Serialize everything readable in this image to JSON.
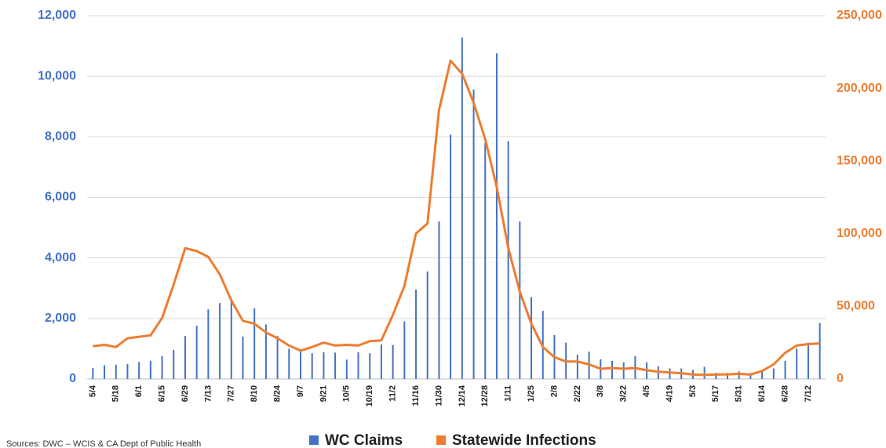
{
  "chart_data": {
    "type": "bar-line",
    "source": "Sources: DWC – WCIS & CA Dept of Public Health",
    "categories": [
      "5/4",
      null,
      "5/18",
      null,
      "6/1",
      null,
      "6/15",
      null,
      "6/29",
      null,
      "7/13",
      null,
      "7/27",
      null,
      "8/10",
      null,
      "8/24",
      null,
      "9/7",
      null,
      "9/21",
      null,
      "10/5",
      null,
      "10/19",
      null,
      "11/2",
      null,
      "11/16",
      null,
      "11/30",
      null,
      "12/14",
      null,
      "12/28",
      null,
      "1/11",
      null,
      "1/25",
      null,
      "2/8",
      null,
      "2/22",
      null,
      "3/8",
      null,
      "3/22",
      null,
      "4/5",
      null,
      "4/19",
      null,
      "5/3",
      null,
      "5/17",
      null,
      "5/31",
      null,
      "6/14",
      null,
      "6/28",
      null,
      "7/12",
      null
    ],
    "series": [
      {
        "name": "WC Claims",
        "type": "bar",
        "color": "#4472c4",
        "values": [
          360,
          450,
          470,
          490,
          560,
          600,
          750,
          960,
          1420,
          1760,
          2300,
          2510,
          2600,
          1400,
          2330,
          1800,
          1420,
          1000,
          950,
          850,
          880,
          870,
          640,
          880,
          850,
          1140,
          1120,
          1900,
          2950,
          3550,
          5200,
          8070,
          11280,
          9560,
          7800,
          10760,
          7850,
          5200,
          2700,
          2250,
          1450,
          1200,
          800,
          900,
          650,
          600,
          550,
          750,
          550,
          420,
          350,
          350,
          300,
          400,
          200,
          200,
          250,
          200,
          300,
          350,
          600,
          1000,
          1200,
          1850
        ]
      },
      {
        "name": "Statewide Infections",
        "type": "line",
        "axis": "y2",
        "color": "#ed7d31",
        "values": [
          22500,
          23500,
          22000,
          28000,
          29000,
          30000,
          42000,
          65000,
          90000,
          88000,
          84000,
          72000,
          54000,
          40000,
          38000,
          32000,
          28000,
          23000,
          19500,
          22000,
          25000,
          23000,
          23500,
          23000,
          26000,
          26500,
          44000,
          64000,
          100000,
          107000,
          185000,
          219000,
          210000,
          190000,
          165000,
          132000,
          90000,
          60000,
          38000,
          22000,
          15000,
          12000,
          12000,
          10000,
          7000,
          7500,
          7000,
          7500,
          6000,
          5000,
          4500,
          4000,
          3000,
          2800,
          3000,
          3200,
          3500,
          3000,
          5500,
          10000,
          18000,
          23000,
          24000,
          24500
        ]
      }
    ],
    "ylim": [
      0,
      12000
    ],
    "yticks": [
      0,
      {
        "value": 2000,
        "label": "2,000"
      },
      {
        "value": 4000,
        "label": "4,000"
      },
      {
        "value": 6000,
        "label": "6,000"
      },
      {
        "value": 8000,
        "label": "8,000"
      },
      {
        "value": 10000,
        "label": "10,000"
      },
      {
        "value": 12000,
        "label": "12,000"
      }
    ],
    "y2lim": [
      0,
      250000
    ],
    "y2ticks": [
      0,
      {
        "value": 50000,
        "label": "50,000"
      },
      {
        "value": 100000,
        "label": "100,000"
      },
      {
        "value": 150000,
        "label": "150,000"
      },
      {
        "value": 200000,
        "label": "200,000"
      },
      {
        "value": 250000,
        "label": "250,000"
      }
    ],
    "grid": true,
    "legend": "bottom"
  }
}
